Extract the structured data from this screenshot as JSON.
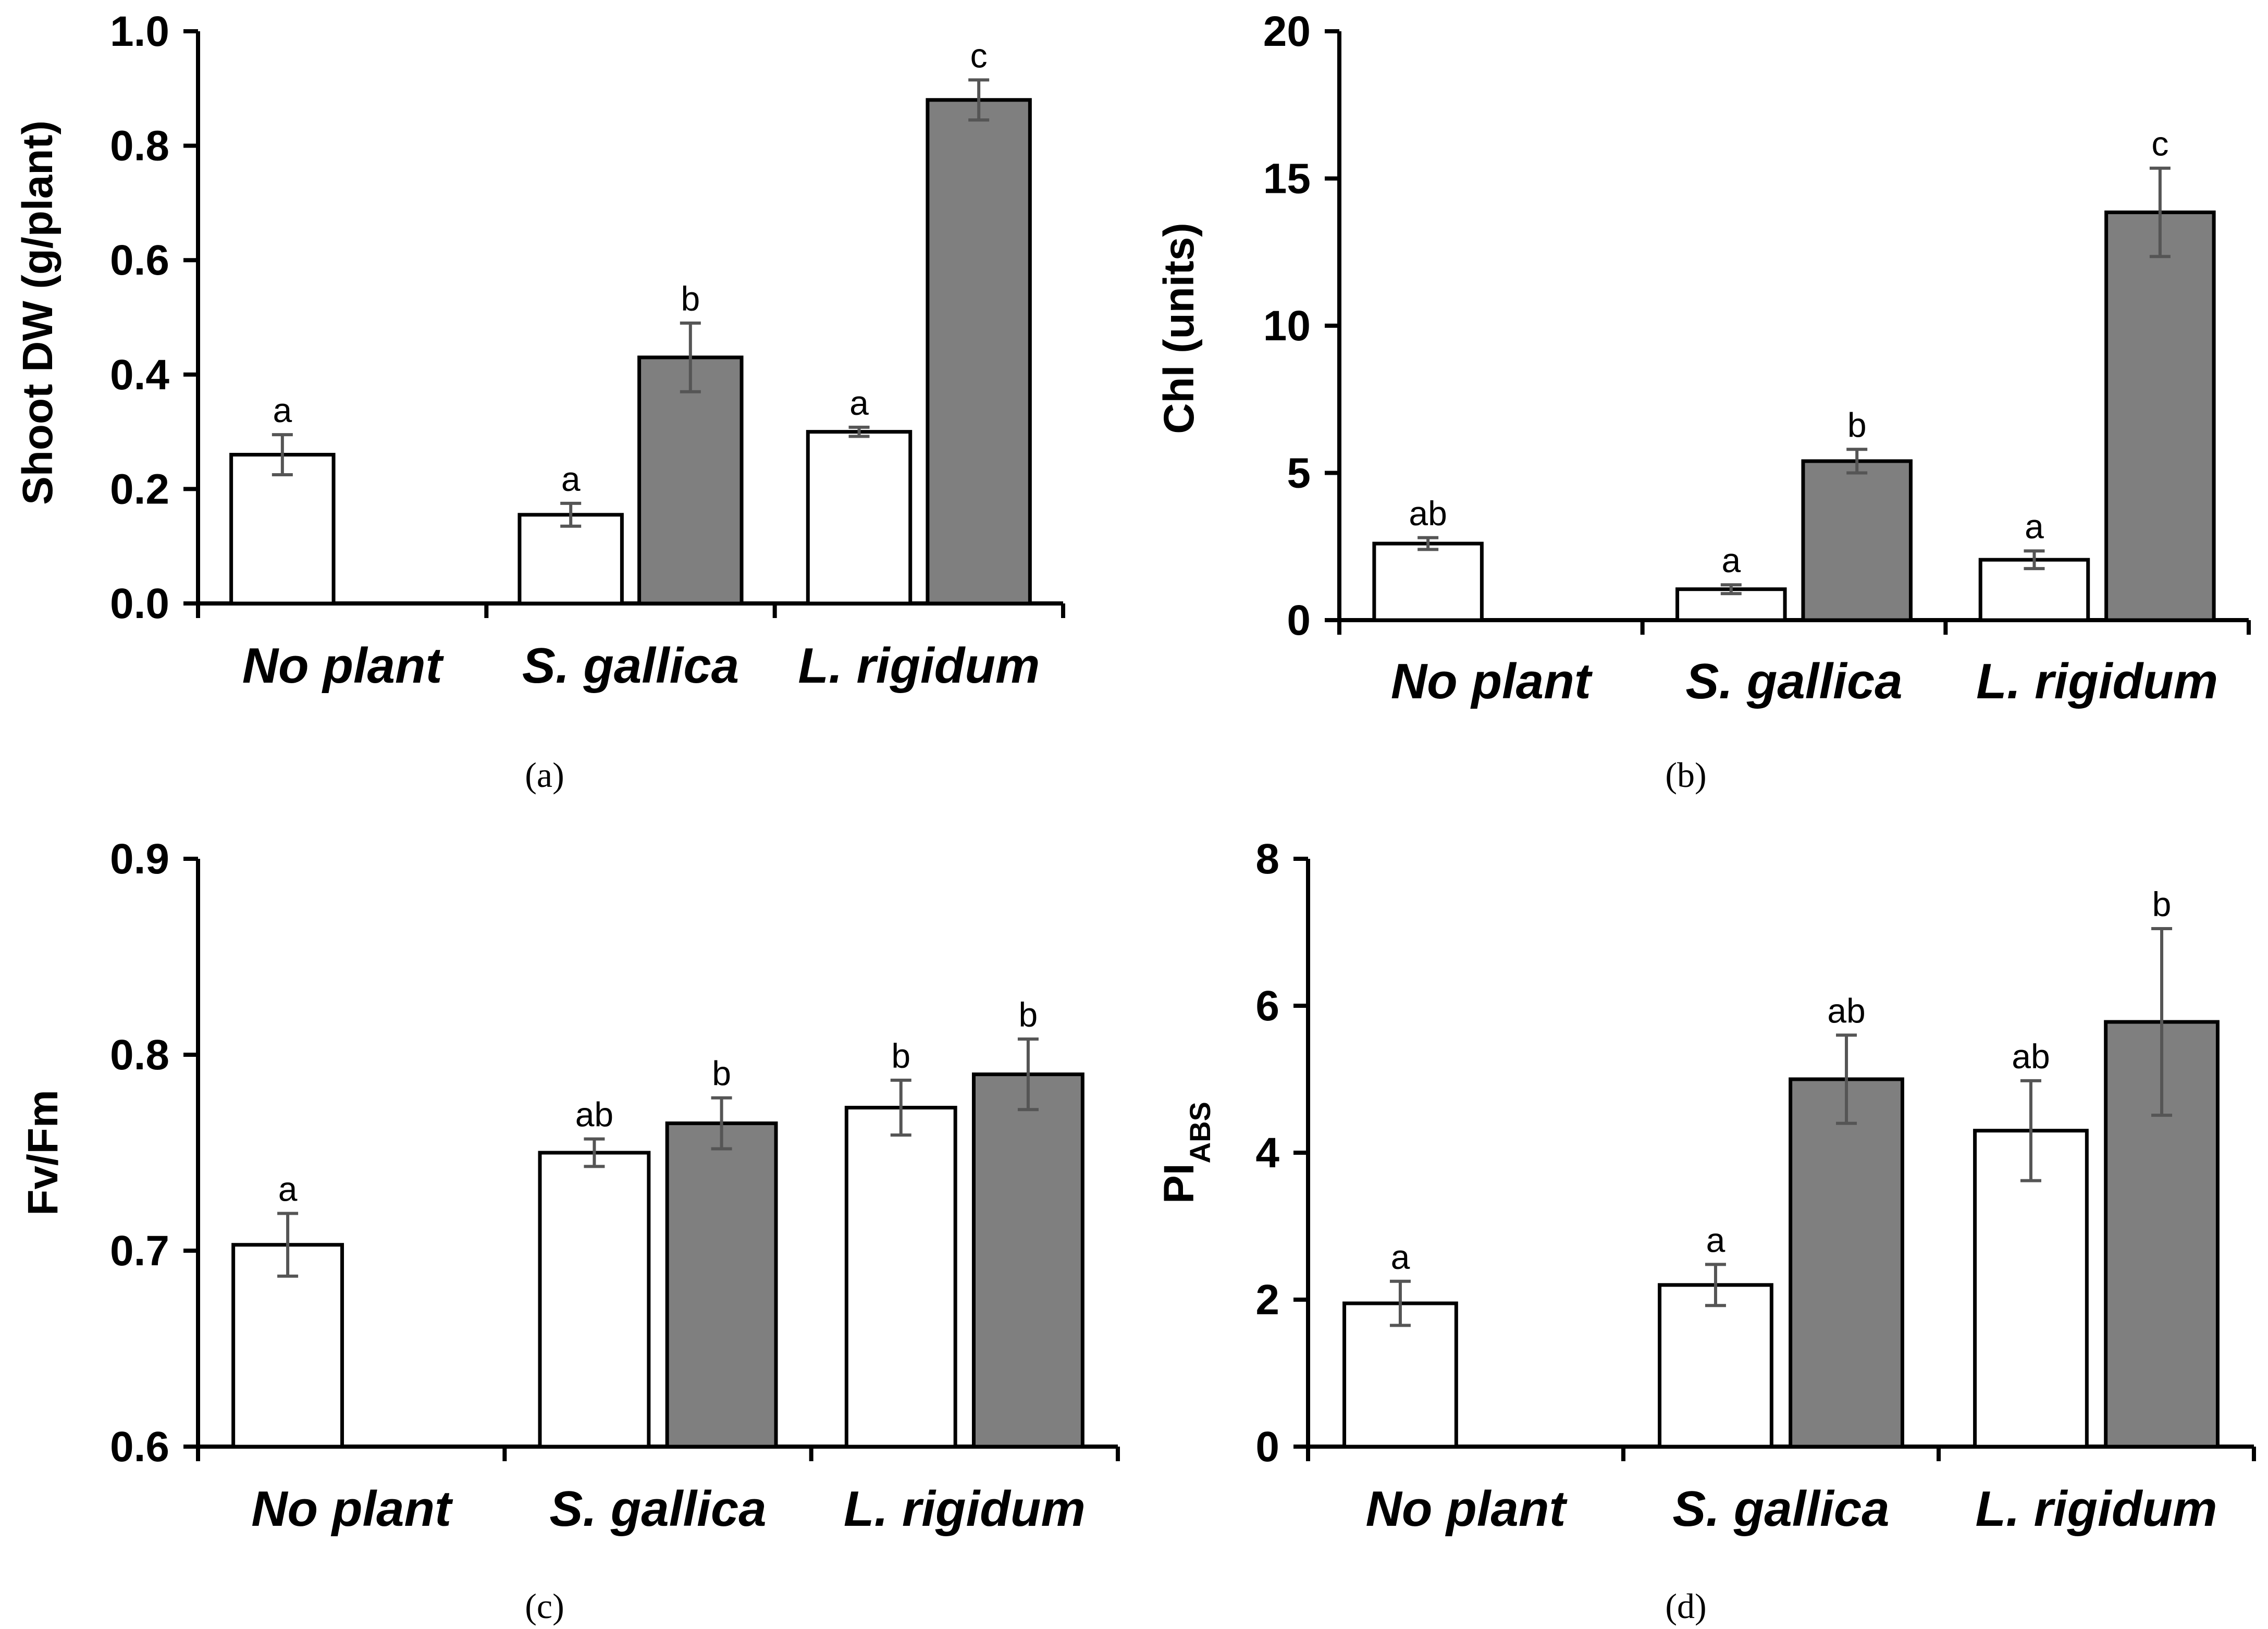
{
  "chart_data": [
    {
      "type": "bar",
      "panel": "(a)",
      "caption": "(a)",
      "ylabel": "Shoot DW (g/plant)",
      "ylim": [
        0,
        1.0
      ],
      "yticks": [
        "0.0",
        "0.2",
        "0.4",
        "0.6",
        "0.8",
        "1.0"
      ],
      "categories": [
        "No plant",
        "S. gallica",
        "L. rigidum"
      ],
      "colors": {
        "series1": "#ffffff",
        "series2": "#7f7f7f"
      },
      "series": [
        {
          "name": "series1",
          "values": [
            0.26,
            0.155,
            0.3
          ],
          "errors": [
            0.035,
            0.02,
            0.008
          ],
          "labels": [
            "a",
            "a",
            "a"
          ]
        },
        {
          "name": "series2",
          "values": [
            null,
            0.43,
            0.88
          ],
          "errors": [
            null,
            0.06,
            0.035
          ],
          "labels": [
            null,
            "b",
            "c"
          ]
        }
      ]
    },
    {
      "type": "bar",
      "panel": "(b)",
      "caption": "(b)",
      "ylabel": "Chl (units)",
      "ylim": [
        0,
        20
      ],
      "yticks": [
        "0",
        "5",
        "10",
        "15",
        "20"
      ],
      "categories": [
        "No plant",
        "S. gallica",
        "L. rigidum"
      ],
      "colors": {
        "series1": "#ffffff",
        "series2": "#7f7f7f"
      },
      "series": [
        {
          "name": "series1",
          "values": [
            2.6,
            1.05,
            2.05
          ],
          "errors": [
            0.2,
            0.15,
            0.3
          ],
          "labels": [
            "ab",
            "a",
            "a"
          ]
        },
        {
          "name": "series2",
          "values": [
            null,
            5.4,
            13.85
          ],
          "errors": [
            null,
            0.4,
            1.5
          ],
          "labels": [
            null,
            "b",
            "c"
          ]
        }
      ]
    },
    {
      "type": "bar",
      "panel": "(c)",
      "caption": "(c)",
      "ylabel": "Fv/Fm",
      "ylim": [
        0.6,
        0.9
      ],
      "yticks": [
        "0.6",
        "0.7",
        "0.8",
        "0.9"
      ],
      "categories": [
        "No plant",
        "S. gallica",
        "L. rigidum"
      ],
      "colors": {
        "series1": "#ffffff",
        "series2": "#7f7f7f"
      },
      "series": [
        {
          "name": "series1",
          "values": [
            0.703,
            0.75,
            0.773
          ],
          "errors": [
            0.016,
            0.007,
            0.014
          ],
          "labels": [
            "a",
            "ab",
            "b"
          ]
        },
        {
          "name": "series2",
          "values": [
            null,
            0.765,
            0.79
          ],
          "errors": [
            null,
            0.013,
            0.018
          ],
          "labels": [
            null,
            "b",
            "b"
          ]
        }
      ]
    },
    {
      "type": "bar",
      "panel": "(d)",
      "caption": "(d)",
      "ylabel": "PI",
      "ylabel_sub": "ABS",
      "ylim": [
        0,
        8
      ],
      "yticks": [
        "0",
        "2",
        "4",
        "6",
        "8"
      ],
      "categories": [
        "No plant",
        "S. gallica",
        "L. rigidum"
      ],
      "colors": {
        "series1": "#ffffff",
        "series2": "#7f7f7f"
      },
      "series": [
        {
          "name": "series1",
          "values": [
            1.95,
            2.2,
            4.3
          ],
          "errors": [
            0.3,
            0.28,
            0.68
          ],
          "labels": [
            "a",
            "a",
            "ab"
          ]
        },
        {
          "name": "series2",
          "values": [
            null,
            5.0,
            5.78
          ],
          "errors": [
            null,
            0.6,
            1.27
          ],
          "labels": [
            null,
            "ab",
            "b"
          ]
        }
      ]
    }
  ]
}
